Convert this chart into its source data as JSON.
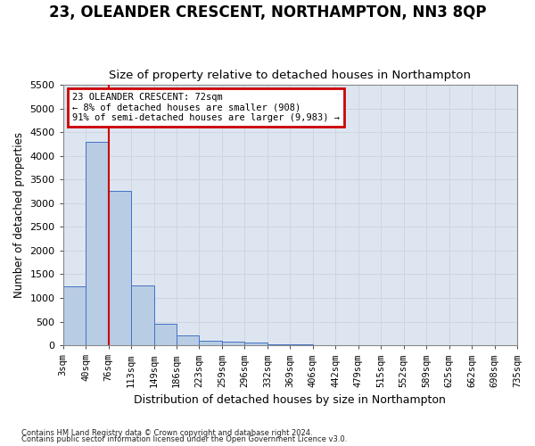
{
  "title": "23, OLEANDER CRESCENT, NORTHAMPTON, NN3 8QP",
  "subtitle": "Size of property relative to detached houses in Northampton",
  "xlabel": "Distribution of detached houses by size in Northampton",
  "ylabel": "Number of detached properties",
  "footer1": "Contains HM Land Registry data © Crown copyright and database right 2024.",
  "footer2": "Contains public sector information licensed under the Open Government Licence v3.0.",
  "bin_labels": [
    "3sqm",
    "40sqm",
    "76sqm",
    "113sqm",
    "149sqm",
    "186sqm",
    "223sqm",
    "259sqm",
    "296sqm",
    "332sqm",
    "369sqm",
    "406sqm",
    "442sqm",
    "479sqm",
    "515sqm",
    "552sqm",
    "589sqm",
    "625sqm",
    "662sqm",
    "698sqm",
    "735sqm"
  ],
  "bar_values": [
    1250,
    4300,
    3250,
    1270,
    460,
    210,
    100,
    75,
    50,
    30,
    20,
    10,
    5,
    3,
    2,
    1,
    0,
    0,
    0,
    0
  ],
  "bar_color": "#b8cce4",
  "bar_edge_color": "#4472c4",
  "property_line_x": 2,
  "property_line_color": "#cc0000",
  "annotation_text": "23 OLEANDER CRESCENT: 72sqm\n← 8% of detached houses are smaller (908)\n91% of semi-detached houses are larger (9,983) →",
  "annotation_box_color": "#cc0000",
  "annotation_text_color": "#000000",
  "ylim": [
    0,
    5500
  ],
  "yticks": [
    0,
    500,
    1000,
    1500,
    2000,
    2500,
    3000,
    3500,
    4000,
    4500,
    5000,
    5500
  ],
  "grid_color": "#ccd5e0",
  "background_color": "#dde6f0",
  "title_fontsize": 12,
  "subtitle_fontsize": 9.5,
  "tick_fontsize": 7.5,
  "ylabel_fontsize": 8.5,
  "xlabel_fontsize": 9
}
